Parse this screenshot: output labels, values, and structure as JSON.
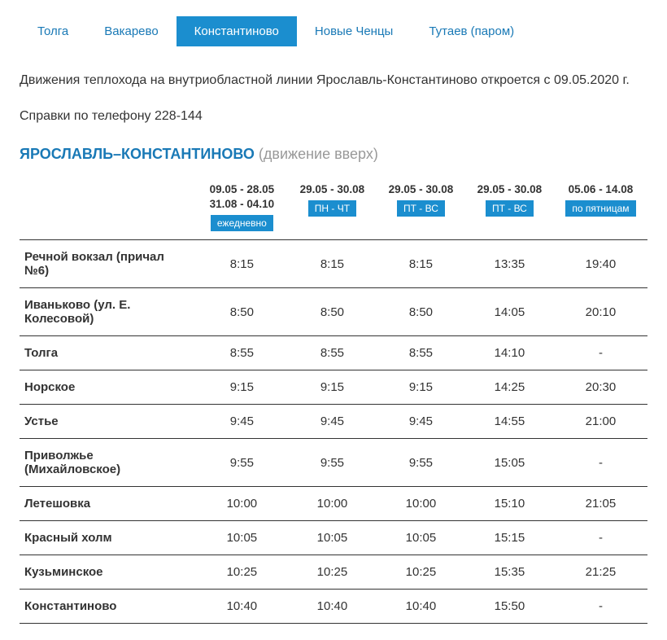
{
  "tabs": [
    {
      "label": "Толга",
      "active": false
    },
    {
      "label": "Вакарево",
      "active": false
    },
    {
      "label": "Константиново",
      "active": true
    },
    {
      "label": "Новые Ченцы",
      "active": false
    },
    {
      "label": "Тутаев (паром)",
      "active": false
    }
  ],
  "intro": {
    "line1": "Движения теплохода на внутриобластной линии Ярославль-Константиново откроется с 09.05.2020 г.",
    "line2": "Справки по телефону 228-144"
  },
  "route": {
    "title_main": "ЯРОСЛАВЛЬ–КОНСТАНТИНОВО",
    "title_sub": "(движение вверх)"
  },
  "schedule": {
    "columns": [
      {
        "dates": [
          "09.05 - 28.05",
          "31.08 - 04.10"
        ],
        "badge": "ежедневно"
      },
      {
        "dates": [
          "29.05 - 30.08"
        ],
        "badge": "ПН - ЧТ"
      },
      {
        "dates": [
          "29.05 - 30.08"
        ],
        "badge": "ПТ - ВС"
      },
      {
        "dates": [
          "29.05 - 30.08"
        ],
        "badge": "ПТ - ВС"
      },
      {
        "dates": [
          "05.06 - 14.08"
        ],
        "badge": "по пятницам"
      }
    ],
    "rows": [
      {
        "stop": "Речной вокзал (причал №6)",
        "times": [
          "8:15",
          "8:15",
          "8:15",
          "13:35",
          "19:40"
        ]
      },
      {
        "stop": "Иваньково (ул. Е. Колесовой)",
        "times": [
          "8:50",
          "8:50",
          "8:50",
          "14:05",
          "20:10"
        ]
      },
      {
        "stop": "Толга",
        "times": [
          "8:55",
          "8:55",
          "8:55",
          "14:10",
          "-"
        ]
      },
      {
        "stop": "Норское",
        "times": [
          "9:15",
          "9:15",
          "9:15",
          "14:25",
          "20:30"
        ]
      },
      {
        "stop": "Устье",
        "times": [
          "9:45",
          "9:45",
          "9:45",
          "14:55",
          "21:00"
        ]
      },
      {
        "stop": "Приволжье (Михайловское)",
        "times": [
          "9:55",
          "9:55",
          "9:55",
          "15:05",
          "-"
        ]
      },
      {
        "stop": "Летешовка",
        "times": [
          "10:00",
          "10:00",
          "10:00",
          "15:10",
          "21:05"
        ]
      },
      {
        "stop": "Красный холм",
        "times": [
          "10:05",
          "10:05",
          "10:05",
          "15:15",
          "-"
        ]
      },
      {
        "stop": "Кузьминское",
        "times": [
          "10:25",
          "10:25",
          "10:25",
          "15:35",
          "21:25"
        ]
      },
      {
        "stop": "Константиново",
        "times": [
          "10:40",
          "10:40",
          "10:40",
          "15:50",
          "-"
        ]
      }
    ]
  },
  "colors": {
    "accent": "#1b8ecf",
    "link": "#1979b6",
    "text": "#333333",
    "muted": "#999999",
    "border": "#333333"
  }
}
